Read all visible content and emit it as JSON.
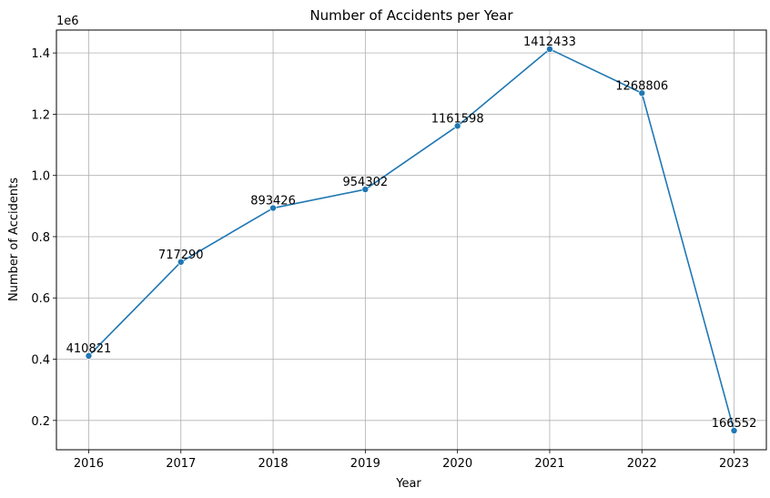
{
  "chart_data": {
    "type": "line",
    "title": "Number of Accidents per Year",
    "xlabel": "Year",
    "ylabel": "Number of Accidents",
    "y_offset_label": "1e6",
    "x": [
      2016,
      2017,
      2018,
      2019,
      2020,
      2021,
      2022,
      2023
    ],
    "series": [
      {
        "values": [
          410821,
          717290,
          893426,
          954302,
          1161598,
          1412433,
          1268806,
          166552
        ],
        "color": "#1f77b4"
      }
    ],
    "x_ticks": [
      "2016",
      "2017",
      "2018",
      "2019",
      "2020",
      "2021",
      "2022",
      "2023"
    ],
    "y_ticks": [
      0.2,
      0.4,
      0.6,
      0.8,
      1.0,
      1.2,
      1.4
    ],
    "y_tick_labels": [
      "0.2",
      "0.4",
      "0.6",
      "0.8",
      "1.0",
      "1.2",
      "1.4"
    ],
    "data_labels": [
      "410821",
      "717290",
      "893426",
      "954302",
      "1161598",
      "1412433",
      "1268806",
      "166552"
    ],
    "xlim": [
      2015.65,
      2023.35
    ],
    "ylim": [
      104258,
      1474727
    ],
    "grid": true,
    "legend": false
  }
}
